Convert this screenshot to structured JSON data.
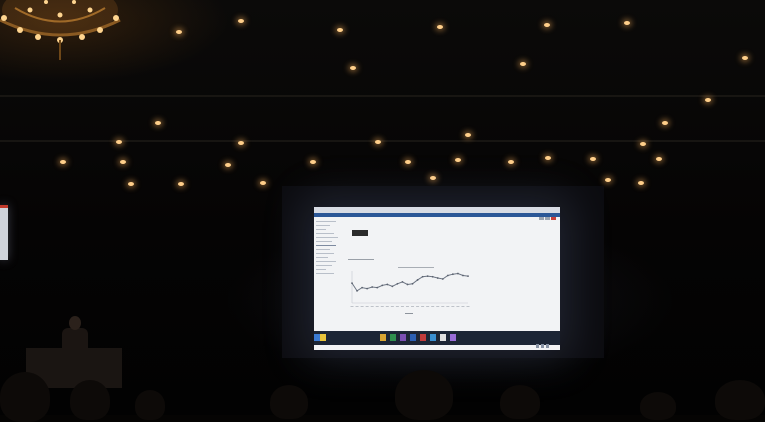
{
  "scene": {
    "description_colors": {
      "screen_background": "#f2f3f5",
      "window_accent": "#2b5797",
      "taskbar": "#1c2535",
      "room_lights": "#ffcf8a"
    }
  },
  "projected_window": {
    "icons": [
      "chrome-icon",
      "folder-icon",
      "excel-icon",
      "media-icon",
      "word-icon",
      "app-icon",
      "app-icon",
      "app-icon",
      "app-icon"
    ]
  },
  "chart_data": {
    "type": "line",
    "series": [
      {
        "values": [
          62,
          38,
          48,
          45,
          50,
          48,
          55,
          58,
          52,
          60,
          66,
          58,
          60,
          72,
          82,
          84,
          82,
          78,
          75,
          86,
          90,
          92,
          86,
          84
        ]
      }
    ]
  }
}
